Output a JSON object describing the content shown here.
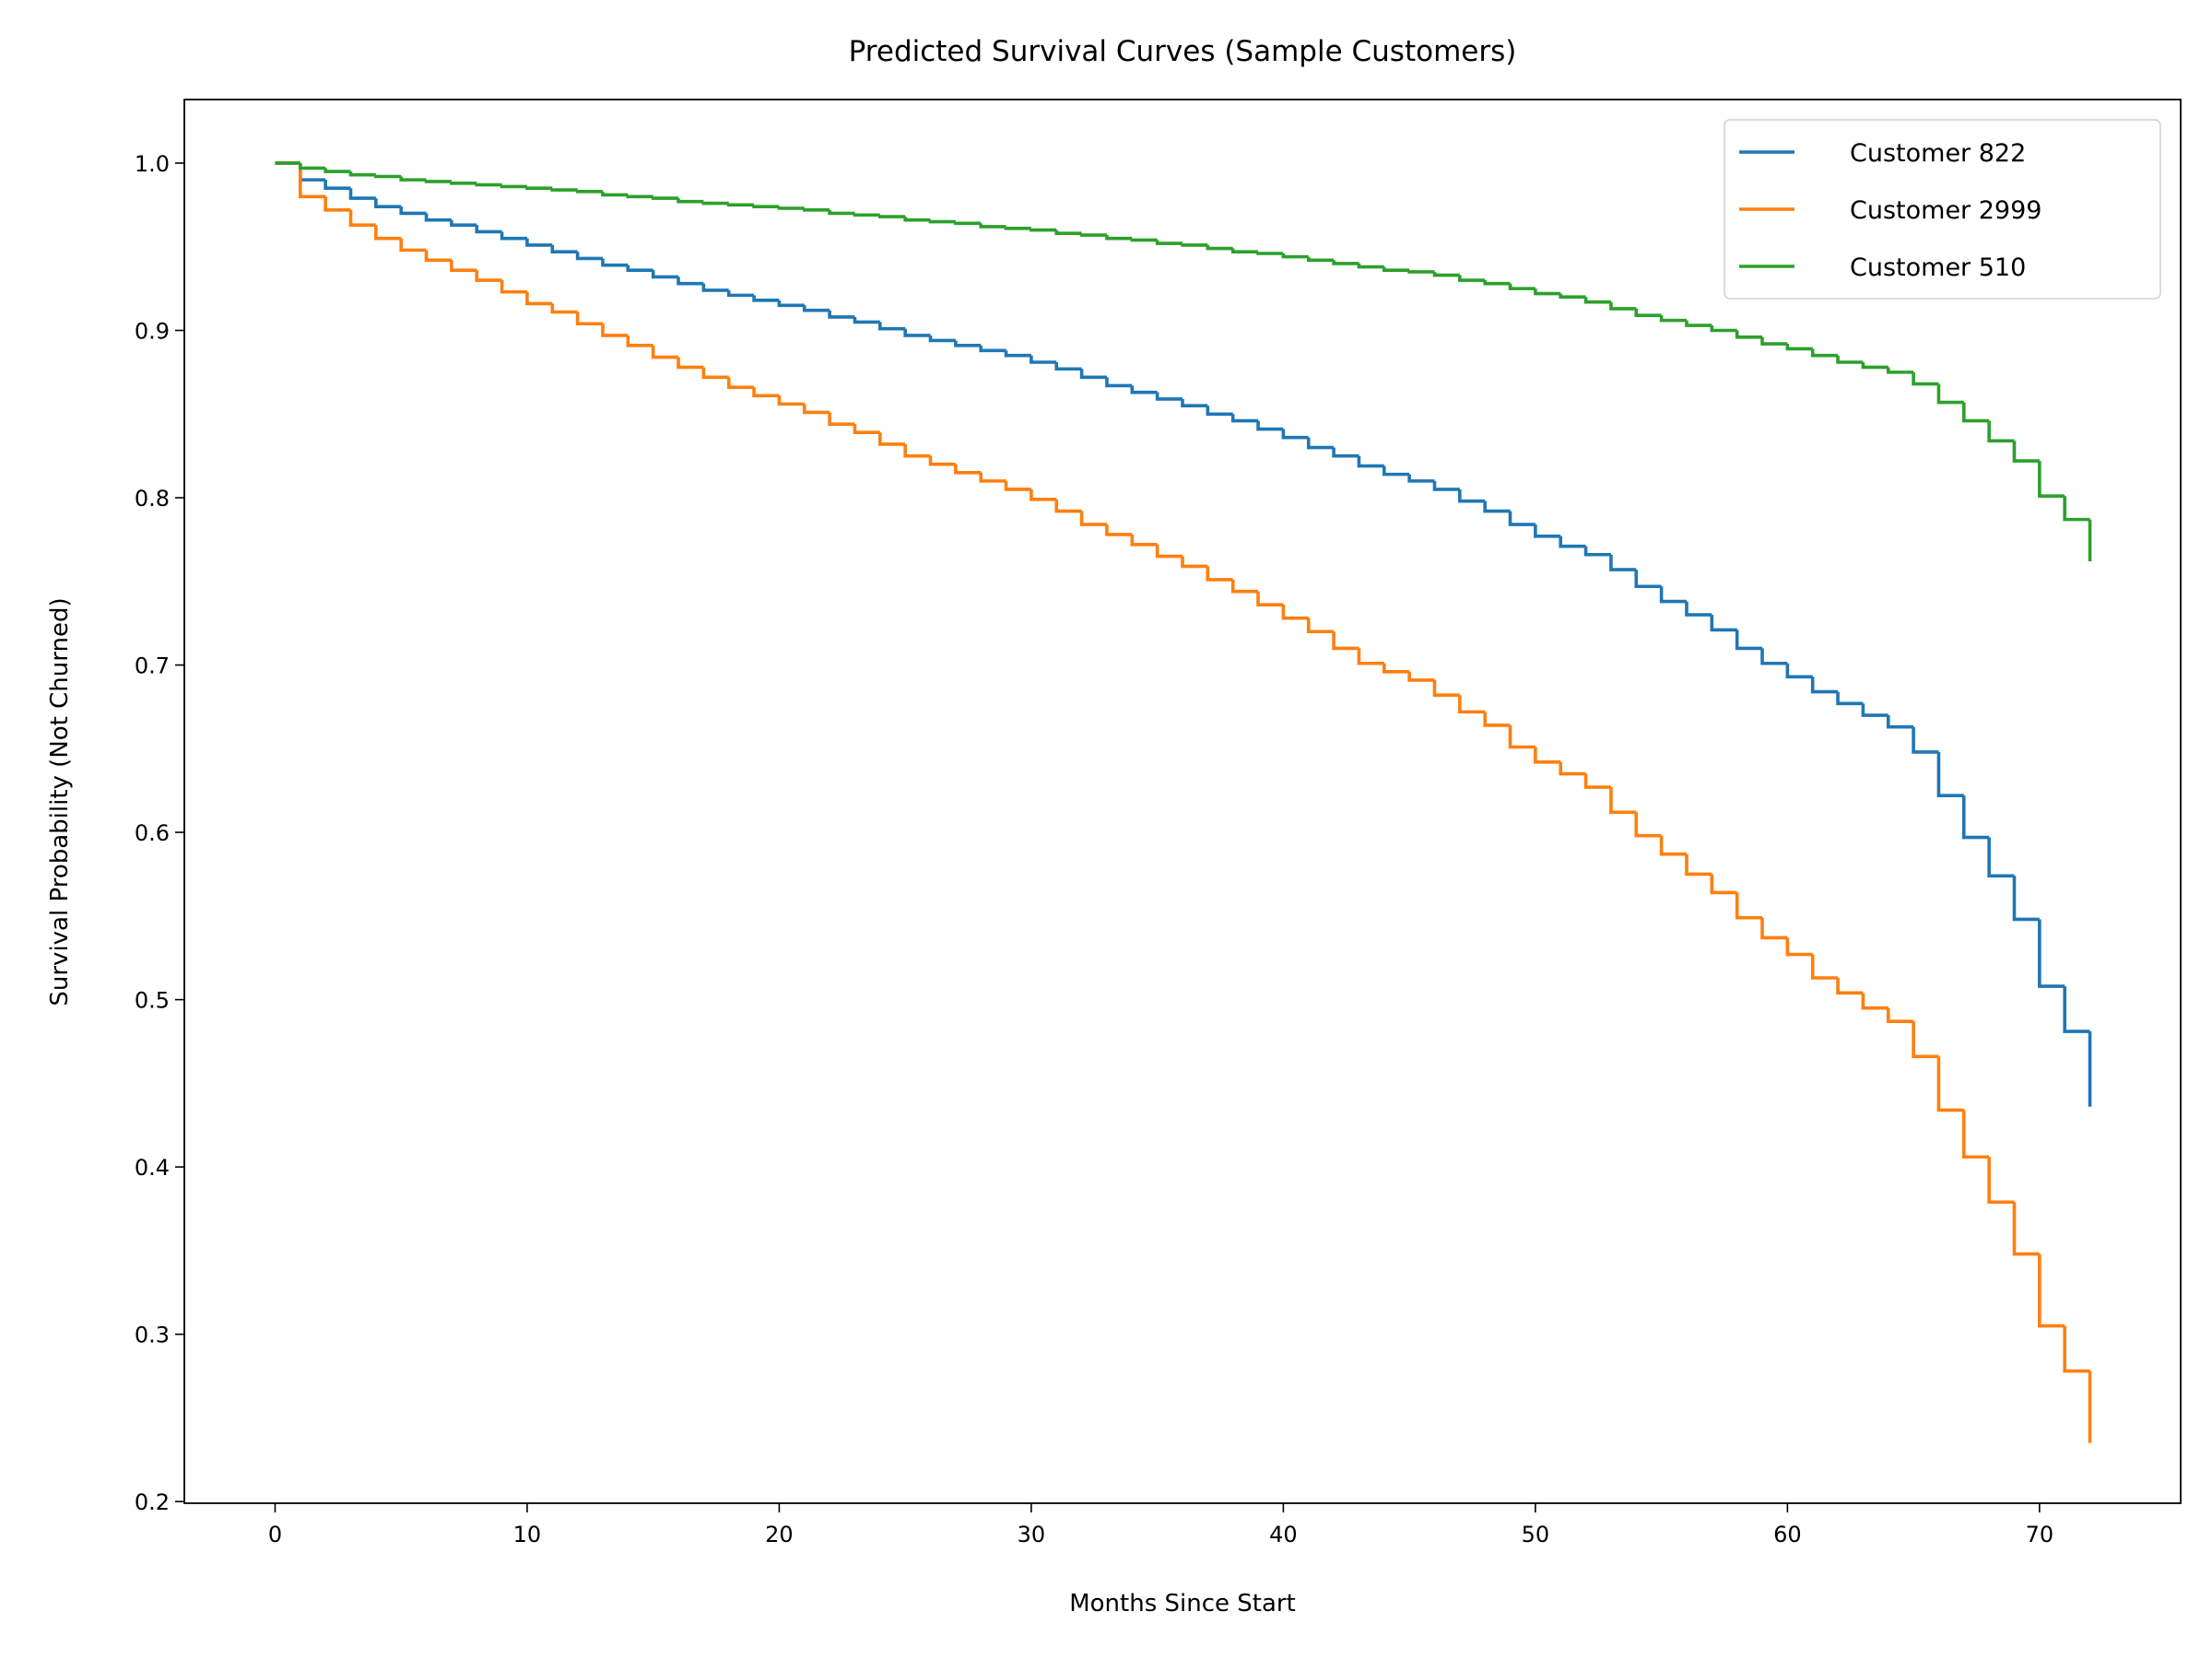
{
  "chart_data": {
    "type": "line",
    "drawstyle": "steps-post",
    "title": "Predicted Survival Curves (Sample Customers)",
    "x_label": "Months Since Start",
    "y_label": "Survival Probability (Not Churned)",
    "x": [
      0,
      1,
      2,
      3,
      4,
      5,
      6,
      7,
      8,
      9,
      10,
      11,
      12,
      13,
      14,
      15,
      16,
      17,
      18,
      19,
      20,
      21,
      22,
      23,
      24,
      25,
      26,
      27,
      28,
      29,
      30,
      31,
      32,
      33,
      34,
      35,
      36,
      37,
      38,
      39,
      40,
      41,
      42,
      43,
      44,
      45,
      46,
      47,
      48,
      49,
      50,
      51,
      52,
      53,
      54,
      55,
      56,
      57,
      58,
      59,
      60,
      61,
      62,
      63,
      64,
      65,
      66,
      67,
      68,
      69,
      70,
      71,
      72
    ],
    "series": [
      {
        "name": "Customer 822",
        "color": "#1f77b4",
        "values": [
          1.0,
          0.99,
          0.985,
          0.979,
          0.974,
          0.97,
          0.966,
          0.963,
          0.959,
          0.955,
          0.951,
          0.947,
          0.943,
          0.939,
          0.936,
          0.932,
          0.928,
          0.924,
          0.921,
          0.918,
          0.915,
          0.912,
          0.908,
          0.905,
          0.901,
          0.897,
          0.894,
          0.891,
          0.888,
          0.885,
          0.881,
          0.877,
          0.872,
          0.867,
          0.863,
          0.859,
          0.855,
          0.85,
          0.846,
          0.841,
          0.836,
          0.83,
          0.825,
          0.819,
          0.814,
          0.81,
          0.805,
          0.798,
          0.792,
          0.784,
          0.777,
          0.771,
          0.766,
          0.757,
          0.747,
          0.738,
          0.73,
          0.721,
          0.71,
          0.701,
          0.693,
          0.684,
          0.677,
          0.67,
          0.663,
          0.648,
          0.622,
          0.597,
          0.574,
          0.548,
          0.508,
          0.481,
          0.436
        ]
      },
      {
        "name": "Customer 2999",
        "color": "#ff7f0e",
        "values": [
          1.0,
          0.98,
          0.972,
          0.963,
          0.955,
          0.948,
          0.942,
          0.936,
          0.93,
          0.923,
          0.916,
          0.911,
          0.904,
          0.897,
          0.891,
          0.884,
          0.878,
          0.872,
          0.866,
          0.861,
          0.856,
          0.851,
          0.844,
          0.839,
          0.832,
          0.825,
          0.82,
          0.815,
          0.81,
          0.805,
          0.799,
          0.792,
          0.784,
          0.778,
          0.772,
          0.765,
          0.759,
          0.751,
          0.744,
          0.736,
          0.728,
          0.72,
          0.71,
          0.701,
          0.696,
          0.691,
          0.682,
          0.672,
          0.664,
          0.651,
          0.642,
          0.635,
          0.627,
          0.612,
          0.598,
          0.587,
          0.575,
          0.564,
          0.549,
          0.537,
          0.527,
          0.513,
          0.504,
          0.495,
          0.487,
          0.466,
          0.434,
          0.406,
          0.379,
          0.348,
          0.305,
          0.278,
          0.235
        ]
      },
      {
        "name": "Customer 510",
        "color": "#2ca02c",
        "values": [
          1.0,
          0.997,
          0.995,
          0.993,
          0.992,
          0.99,
          0.989,
          0.988,
          0.987,
          0.986,
          0.985,
          0.984,
          0.983,
          0.981,
          0.98,
          0.979,
          0.977,
          0.976,
          0.975,
          0.974,
          0.973,
          0.972,
          0.97,
          0.969,
          0.968,
          0.966,
          0.965,
          0.964,
          0.962,
          0.961,
          0.96,
          0.958,
          0.957,
          0.955,
          0.954,
          0.952,
          0.951,
          0.949,
          0.947,
          0.946,
          0.944,
          0.942,
          0.94,
          0.938,
          0.936,
          0.935,
          0.933,
          0.93,
          0.928,
          0.925,
          0.922,
          0.92,
          0.917,
          0.913,
          0.909,
          0.906,
          0.903,
          0.9,
          0.896,
          0.892,
          0.889,
          0.885,
          0.881,
          0.878,
          0.875,
          0.868,
          0.857,
          0.846,
          0.834,
          0.822,
          0.801,
          0.787,
          0.762
        ]
      }
    ],
    "xlim": [
      -3.6,
      75.6
    ],
    "ylim": [
      0.199,
      1.038
    ],
    "xticks": [
      0,
      10,
      20,
      30,
      40,
      50,
      60,
      70
    ],
    "yticks": [
      0.2,
      0.3,
      0.4,
      0.5,
      0.6,
      0.7,
      0.8,
      0.9,
      {
        "value": 1,
        "label": "1.0"
      }
    ],
    "grid": false,
    "legend": "upper right"
  }
}
